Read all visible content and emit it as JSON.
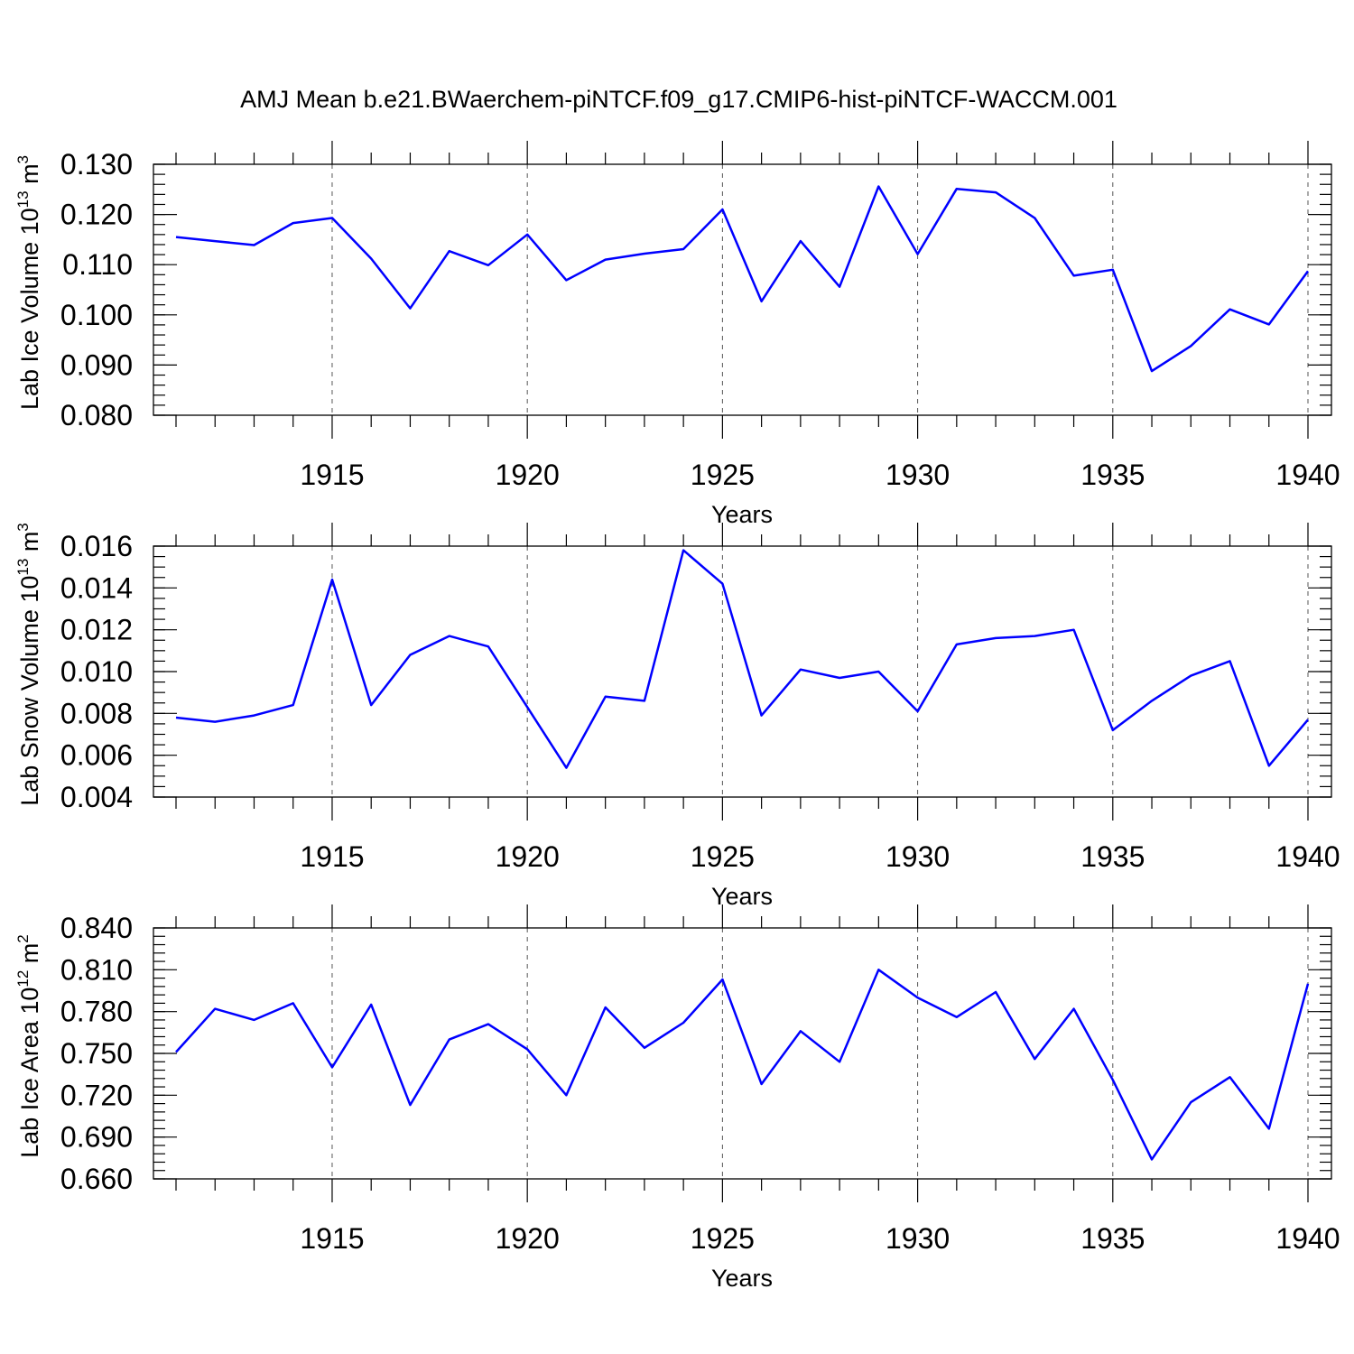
{
  "title": "AMJ Mean b.e21.BWaerchem-piNTCF.f09_g17.CMIP6-hist-piNTCF-WACCM.001",
  "chart_data": [
    {
      "type": "line",
      "xlabel": "Years",
      "ylabel": "Lab Ice Volume 10",
      "ylabel_exp": "13",
      "ylabel_unit": "m",
      "ylabel_unit_exp": "3",
      "xlim": [
        1911,
        1940
      ],
      "ylim": [
        0.08,
        0.13
      ],
      "x_major_ticks": [
        1915,
        1920,
        1925,
        1930,
        1935,
        1940
      ],
      "x_tick_labels": [
        "1915",
        "1920",
        "1925",
        "1930",
        "1935",
        "1940"
      ],
      "y_major_ticks": [
        0.08,
        0.09,
        0.1,
        0.11,
        0.12,
        0.13
      ],
      "y_tick_labels": [
        "0.080",
        "0.090",
        "0.100",
        "0.110",
        "0.120",
        "0.130"
      ],
      "y_minor_step": 0.002,
      "grid": "dashed vertical lines at major x ticks",
      "color": "#0000ff",
      "x": [
        1911,
        1912,
        1913,
        1914,
        1915,
        1916,
        1917,
        1918,
        1919,
        1920,
        1921,
        1922,
        1923,
        1924,
        1925,
        1926,
        1927,
        1928,
        1929,
        1930,
        1931,
        1932,
        1933,
        1934,
        1935,
        1936,
        1937,
        1938,
        1939,
        1940
      ],
      "y": [
        0.1155,
        0.1147,
        0.1139,
        0.1183,
        0.1193,
        0.1112,
        0.1013,
        0.1127,
        0.1099,
        0.116,
        0.1069,
        0.111,
        0.1122,
        0.1131,
        0.121,
        0.1027,
        0.1147,
        0.1056,
        0.1256,
        0.1121,
        0.1251,
        0.1244,
        0.1193,
        0.1078,
        0.109,
        0.0888,
        0.0938,
        0.1011,
        0.0981,
        0.1087
      ]
    },
    {
      "type": "line",
      "xlabel": "Years",
      "ylabel": "Lab Snow Volume 10",
      "ylabel_exp": "13",
      "ylabel_unit": "m",
      "ylabel_unit_exp": "3",
      "xlim": [
        1911,
        1940
      ],
      "ylim": [
        0.004,
        0.016
      ],
      "x_major_ticks": [
        1915,
        1920,
        1925,
        1930,
        1935,
        1940
      ],
      "x_tick_labels": [
        "1915",
        "1920",
        "1925",
        "1930",
        "1935",
        "1940"
      ],
      "y_major_ticks": [
        0.004,
        0.006,
        0.008,
        0.01,
        0.012,
        0.014,
        0.016
      ],
      "y_tick_labels": [
        "0.004",
        "0.006",
        "0.008",
        "0.010",
        "0.012",
        "0.014",
        "0.016"
      ],
      "y_minor_step": 0.0005,
      "grid": "dashed vertical lines at major x ticks",
      "color": "#0000ff",
      "x": [
        1911,
        1912,
        1913,
        1914,
        1915,
        1916,
        1917,
        1918,
        1919,
        1920,
        1921,
        1922,
        1923,
        1924,
        1925,
        1926,
        1927,
        1928,
        1929,
        1930,
        1931,
        1932,
        1933,
        1934,
        1935,
        1936,
        1937,
        1938,
        1939,
        1940
      ],
      "y": [
        0.0078,
        0.0076,
        0.0079,
        0.0084,
        0.0144,
        0.0084,
        0.0108,
        0.0117,
        0.0112,
        0.0083,
        0.0054,
        0.0088,
        0.0086,
        0.0158,
        0.0142,
        0.0079,
        0.0101,
        0.0097,
        0.01,
        0.0081,
        0.0113,
        0.0116,
        0.0117,
        0.012,
        0.0072,
        0.0086,
        0.0098,
        0.0105,
        0.0055,
        0.0077
      ]
    },
    {
      "type": "line",
      "xlabel": "Years",
      "ylabel": "Lab Ice Area 10",
      "ylabel_exp": "12",
      "ylabel_unit": "m",
      "ylabel_unit_exp": "2",
      "xlim": [
        1911,
        1940
      ],
      "ylim": [
        0.66,
        0.84
      ],
      "x_major_ticks": [
        1915,
        1920,
        1925,
        1930,
        1935,
        1940
      ],
      "x_tick_labels": [
        "1915",
        "1920",
        "1925",
        "1930",
        "1935",
        "1940"
      ],
      "y_major_ticks": [
        0.66,
        0.69,
        0.72,
        0.75,
        0.78,
        0.81,
        0.84
      ],
      "y_tick_labels": [
        "0.660",
        "0.690",
        "0.720",
        "0.750",
        "0.780",
        "0.810",
        "0.840"
      ],
      "y_minor_step": 0.006,
      "grid": "dashed vertical lines at major x ticks",
      "color": "#0000ff",
      "x": [
        1911,
        1912,
        1913,
        1914,
        1915,
        1916,
        1917,
        1918,
        1919,
        1920,
        1921,
        1922,
        1923,
        1924,
        1925,
        1926,
        1927,
        1928,
        1929,
        1930,
        1931,
        1932,
        1933,
        1934,
        1935,
        1936,
        1937,
        1938,
        1939,
        1940
      ],
      "y": [
        0.751,
        0.782,
        0.774,
        0.786,
        0.74,
        0.785,
        0.713,
        0.76,
        0.771,
        0.753,
        0.72,
        0.783,
        0.754,
        0.772,
        0.803,
        0.728,
        0.766,
        0.744,
        0.81,
        0.79,
        0.776,
        0.794,
        0.746,
        0.782,
        0.731,
        0.674,
        0.715,
        0.733,
        0.696,
        0.8
      ]
    }
  ]
}
